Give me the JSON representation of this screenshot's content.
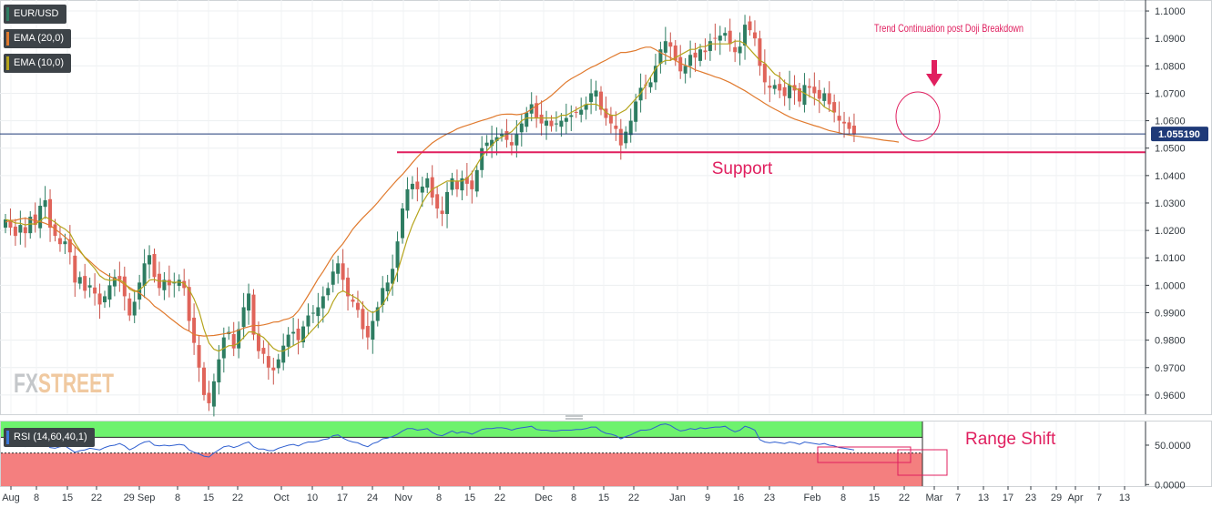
{
  "chart_data": [
    {
      "type": "candlestick",
      "symbol": "EUR/USD",
      "legend": [
        {
          "label": "EUR/USD",
          "color": "#2e7d62"
        },
        {
          "label": "EMA (20,0)",
          "color": "#e07a2e"
        },
        {
          "label": "EMA (10,0)",
          "color": "#b5a41c"
        }
      ],
      "ylim": [
        0.953,
        1.104
      ],
      "y_ticks": [
        "1.1000",
        "1.0900",
        "1.0800",
        "1.0700",
        "1.0600",
        "1.0500",
        "1.0400",
        "1.0300",
        "1.0200",
        "1.0100",
        "1.0000",
        "0.9900",
        "0.9800",
        "0.9700",
        "0.9600"
      ],
      "y_tick_values": [
        1.1,
        1.09,
        1.08,
        1.07,
        1.06,
        1.05,
        1.04,
        1.03,
        1.02,
        1.01,
        1.0,
        0.99,
        0.98,
        0.97,
        0.96
      ],
      "current_price": "1.055190",
      "current_price_value": 1.05519,
      "support_level": 1.0485,
      "support_label": "Support",
      "annotation": "Trend Continuation  post Doji Breakdown",
      "x_tick_labels": [
        "Aug",
        "8",
        "15",
        "22",
        "29 Sep",
        "8",
        "15",
        "22",
        "Oct",
        "10",
        "17",
        "24",
        "Nov",
        "8",
        "15",
        "22",
        "Dec",
        "8",
        "15",
        "22",
        "Jan",
        "9",
        "16",
        "23",
        "Feb",
        "8",
        "15",
        "22",
        "Mar",
        "7",
        "13",
        "17",
        "23",
        "29",
        "Apr",
        "7",
        "13"
      ],
      "closes": [
        1.024,
        1.021,
        1.018,
        1.022,
        1.019,
        1.025,
        1.022,
        1.029,
        1.031,
        1.021,
        1.018,
        1.015,
        1.016,
        1.012,
        1.001,
        1.003,
        0.998,
        1.0,
        0.997,
        0.993,
        0.996,
        1.0,
        1.003,
        1.002,
        0.996,
        0.989,
        0.994,
        1.001,
        1.008,
        1.011,
        1.003,
        0.999,
        1.002,
        1.0,
        1.001,
        1.002,
        0.999,
        0.987,
        0.979,
        0.97,
        0.96,
        0.957,
        0.965,
        0.973,
        0.981,
        0.983,
        0.977,
        0.984,
        0.992,
        0.997,
        0.982,
        0.976,
        0.975,
        0.97,
        0.969,
        0.973,
        0.978,
        0.982,
        0.983,
        0.98,
        0.985,
        0.989,
        0.99,
        0.992,
        0.996,
        0.999,
        1.005,
        1.008,
        1.002,
        0.996,
        0.994,
        0.991,
        0.984,
        0.981,
        0.987,
        0.992,
        0.999,
        1.001,
        1.006,
        1.016,
        1.028,
        1.035,
        1.037,
        1.035,
        1.036,
        1.039,
        1.032,
        1.028,
        1.026,
        1.034,
        1.039,
        1.035,
        1.039,
        1.037,
        1.035,
        1.042,
        1.05,
        1.052,
        1.053,
        1.054,
        1.055,
        1.053,
        1.051,
        1.055,
        1.059,
        1.063,
        1.066,
        1.061,
        1.059,
        1.06,
        1.058,
        1.059,
        1.06,
        1.061,
        1.062,
        1.063,
        1.064,
        1.066,
        1.07,
        1.071,
        1.064,
        1.061,
        1.059,
        1.057,
        1.051,
        1.056,
        1.06,
        1.067,
        1.072,
        1.073,
        1.074,
        1.08,
        1.086,
        1.089,
        1.087,
        1.082,
        1.078,
        1.08,
        1.084,
        1.083,
        1.086,
        1.085,
        1.089,
        1.09,
        1.091,
        1.092,
        1.088,
        1.085,
        1.087,
        1.095,
        1.093,
        1.09,
        1.08,
        1.074,
        1.072,
        1.073,
        1.071,
        1.069,
        1.073,
        1.071,
        1.067,
        1.073,
        1.072,
        1.07,
        1.068,
        1.07,
        1.066,
        1.063,
        1.06,
        1.059,
        1.057,
        1.055
      ],
      "ema20": [
        1.023,
        1.0237,
        1.0237,
        1.0242,
        1.0245,
        1.024,
        1.0236,
        1.0232,
        1.0226,
        1.0218,
        1.0205,
        1.0191,
        1.0176,
        1.016,
        1.0142,
        1.0123,
        1.0103,
        1.0088,
        1.0071,
        1.0055,
        1.0043,
        1.0032,
        1.0024,
        1.0015,
        1.0003,
        0.9992,
        0.9981,
        0.9972,
        0.9958,
        0.9944,
        0.9924,
        0.9912,
        0.9898,
        0.9883,
        0.9869,
        0.9855,
        0.9842,
        0.9833,
        0.982,
        0.9817,
        0.9815,
        0.9816,
        0.9817,
        0.982,
        0.9823,
        0.9826,
        0.983,
        0.9837,
        0.9844,
        0.9849,
        0.9854,
        0.9853,
        0.9856,
        0.986,
        0.9866,
        0.9867,
        0.9874,
        0.9878,
        0.9887,
        0.9907,
        0.9934,
        0.9963,
        0.9993,
        1.0024,
        1.005,
        1.008,
        1.0109,
        1.0131,
        1.0152,
        1.0178,
        1.0205,
        1.0226,
        1.0246,
        1.0264,
        1.0282,
        1.0302,
        1.0324,
        1.0345,
        1.0366,
        1.0386,
        1.0404,
        1.0425,
        1.0447,
        1.0468,
        1.0486,
        1.0503,
        1.0519,
        1.0531,
        1.0542,
        1.0552,
        1.056,
        1.057,
        1.0577,
        1.0583,
        1.0589,
        1.0595,
        1.0601,
        1.0606,
        1.0612,
        1.0619,
        1.0623,
        1.0624,
        1.0624,
        1.0622,
        1.0624,
        1.063,
        1.0642,
        1.0655,
        1.0667,
        1.0678,
        1.0692,
        1.0708,
        1.0725,
        1.0741,
        1.0753,
        1.0763,
        1.0773,
        1.0784,
        1.0794,
        1.0802,
        1.0812,
        1.0821,
        1.0831,
        1.084,
        1.0849,
        1.0849,
        1.0852,
        1.0856,
        1.0863,
        1.0868,
        1.0868,
        1.0859,
        1.0848,
        1.0839,
        1.083,
        1.082,
        1.0809,
        1.0802,
        1.0795,
        1.0785,
        1.0779,
        1.0773,
        1.0767,
        1.076,
        1.0755,
        1.0747,
        1.0739,
        1.0729,
        1.0719,
        1.0709,
        1.0698,
        1.0686,
        1.0675,
        1.0663,
        1.0652,
        1.0642,
        1.0633,
        1.0623,
        1.0614,
        1.0606,
        1.06,
        1.0594,
        1.0588,
        1.0582,
        1.0577,
        1.057,
        1.0564,
        1.056,
        1.0556,
        1.0551,
        1.0548,
        1.0545,
        1.0543,
        1.054,
        1.0538,
        1.0535,
        1.0532,
        1.0529,
        1.0527,
        1.0525,
        1.0522
      ],
      "ema10": [
        1.024,
        1.0236,
        1.0227,
        1.0226,
        1.022,
        1.0224,
        1.0223,
        1.0235,
        1.0249,
        1.0241,
        1.023,
        1.0215,
        1.0205,
        1.0189,
        1.0155,
        1.0127,
        1.0101,
        1.0081,
        1.0061,
        1.0035,
        1.0022,
        1.0018,
        1.002,
        1.002,
        1.0009,
        0.9986,
        0.9977,
        0.9983,
        0.9999,
        1.0019,
        1.0021,
        1.0015,
        1.0016,
        1.0013,
        1.0011,
        1.0012,
        1.0008,
        0.9984,
        0.995,
        0.9905,
        0.984,
        0.979,
        0.9767,
        0.976,
        0.977,
        0.978,
        0.978,
        0.979,
        0.981,
        0.983,
        0.983,
        0.982,
        0.981,
        0.979,
        0.977,
        0.976,
        0.976,
        0.977,
        0.978,
        0.979,
        0.98,
        0.982,
        0.984,
        0.986,
        0.988,
        0.99,
        0.994,
        0.997,
        0.998,
        0.997,
        0.996,
        0.995,
        0.993,
        0.991,
        0.99,
        0.991,
        0.993,
        0.996,
        1.0,
        1.005,
        1.011,
        1.017,
        1.022,
        1.026,
        1.03,
        1.033,
        1.035,
        1.036,
        1.037,
        1.038,
        1.038,
        1.038,
        1.038,
        1.039,
        1.041,
        1.044,
        1.047,
        1.049,
        1.051,
        1.053,
        1.054,
        1.055,
        1.056,
        1.058,
        1.06,
        1.061,
        1.061,
        1.061,
        1.061,
        1.061,
        1.061,
        1.061,
        1.062,
        1.062,
        1.063,
        1.064,
        1.065,
        1.066,
        1.066,
        1.066,
        1.065,
        1.063,
        1.062,
        1.062,
        1.063,
        1.064,
        1.066,
        1.068,
        1.07,
        1.073,
        1.076,
        1.079,
        1.081,
        1.082,
        1.082,
        1.083,
        1.084,
        1.085,
        1.086,
        1.086,
        1.087,
        1.087,
        1.088,
        1.088,
        1.088,
        1.088,
        1.088,
        1.089,
        1.089,
        1.088,
        1.086,
        1.084,
        1.082,
        1.081,
        1.079,
        1.077,
        1.076,
        1.074,
        1.073,
        1.072,
        1.071,
        1.07,
        1.069,
        1.068,
        1.067,
        1.065,
        1.064,
        1.063
      ],
      "logo": "FXSTREET"
    },
    {
      "type": "line",
      "indicator": "RSI (14,60,40,1)",
      "ylim": [
        -2,
        80
      ],
      "y_ticks": [
        "50.0000",
        "0.0000"
      ],
      "y_tick_values": [
        50,
        0
      ],
      "upper_band": 60,
      "lower_band": 40,
      "annotation": "Range Shift",
      "values": [
        50,
        49,
        51,
        52,
        48,
        50,
        53,
        54,
        52,
        47,
        46,
        48,
        49,
        45,
        41,
        43,
        44,
        46,
        45,
        44,
        47,
        49,
        50,
        52,
        49,
        44,
        47,
        51,
        54,
        55,
        50,
        49,
        50,
        49,
        50,
        51,
        50,
        44,
        41,
        39,
        36,
        35,
        40,
        44,
        48,
        49,
        47,
        49,
        52,
        54,
        48,
        45,
        45,
        43,
        43,
        46,
        48,
        50,
        51,
        49,
        52,
        54,
        54,
        55,
        57,
        58,
        62,
        63,
        59,
        56,
        54,
        53,
        50,
        48,
        52,
        54,
        58,
        59,
        61,
        64,
        68,
        71,
        71,
        69,
        70,
        71,
        66,
        63,
        62,
        65,
        68,
        65,
        67,
        66,
        64,
        67,
        70,
        71,
        71,
        72,
        72,
        71,
        69,
        71,
        72,
        73,
        74,
        70,
        69,
        69,
        68,
        68,
        69,
        69,
        69,
        70,
        70,
        71,
        73,
        73,
        68,
        65,
        64,
        62,
        58,
        61,
        63,
        66,
        69,
        69,
        70,
        73,
        76,
        77,
        75,
        71,
        68,
        69,
        71,
        70,
        72,
        71,
        72,
        73,
        73,
        74,
        70,
        67,
        69,
        74,
        72,
        69,
        57,
        54,
        53,
        54,
        53,
        52,
        54,
        53,
        51,
        54,
        53,
        52,
        51,
        52,
        50,
        49,
        47,
        46,
        45,
        44
      ]
    }
  ]
}
